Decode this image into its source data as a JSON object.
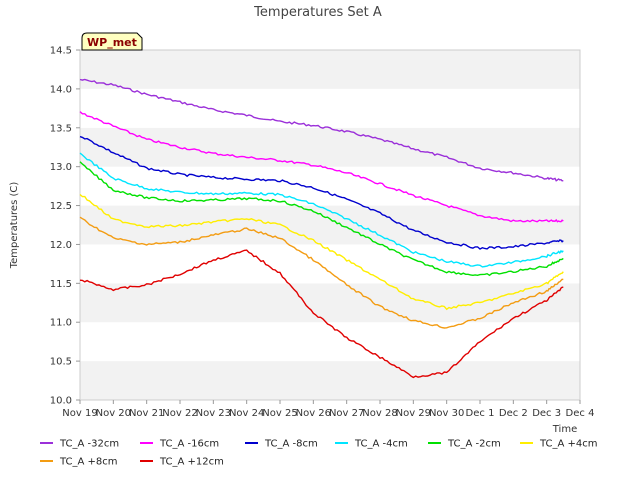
{
  "chart_data": {
    "type": "line",
    "title": "Temperatures Set A",
    "xlabel": "Time",
    "ylabel": "Temperatures (C)",
    "badge": "WP_met",
    "x_tick_labels": [
      "Nov 19",
      "Nov 20",
      "Nov 21",
      "Nov 22",
      "Nov 23",
      "Nov 24",
      "Nov 25",
      "Nov 26",
      "Nov 27",
      "Nov 28",
      "Nov 29",
      "Nov 30",
      "Dec 1",
      "Dec 2",
      "Dec 3",
      "Dec 4"
    ],
    "y_ticks": [
      10.0,
      10.5,
      11.0,
      11.5,
      12.0,
      12.5,
      13.0,
      13.5,
      14.0,
      14.5
    ],
    "y_tick_labels": [
      "10.0",
      "10.5",
      "11.0",
      "11.5",
      "12.0",
      "12.5",
      "13.0",
      "13.5",
      "14.0",
      "14.5"
    ],
    "ylim": [
      10.0,
      14.5
    ],
    "xlim": [
      "2018-11-19",
      "2018-12-04"
    ],
    "grid": "horizontal bands",
    "legend_position": "bottom",
    "x": [
      "2018-11-19",
      "2018-11-20",
      "2018-11-21",
      "2018-11-22",
      "2018-11-23",
      "2018-11-24",
      "2018-11-25",
      "2018-11-26",
      "2018-11-27",
      "2018-11-28",
      "2018-11-29",
      "2018-11-30",
      "2018-12-01",
      "2018-12-02",
      "2018-12-03",
      "2018-12-03T12:00"
    ],
    "series": [
      {
        "name": "TC_A -32cm",
        "color": "#9b30d9",
        "values": [
          14.12,
          14.05,
          13.93,
          13.83,
          13.73,
          13.66,
          13.58,
          13.53,
          13.45,
          13.35,
          13.23,
          13.12,
          12.98,
          12.92,
          12.85,
          12.82
        ]
      },
      {
        "name": "TC_A -16cm",
        "color": "#ff00ff",
        "values": [
          13.7,
          13.52,
          13.35,
          13.25,
          13.17,
          13.12,
          13.08,
          13.02,
          12.92,
          12.78,
          12.63,
          12.5,
          12.37,
          12.3,
          12.3,
          12.3
        ]
      },
      {
        "name": "TC_A -8cm",
        "color": "#0000cd",
        "values": [
          13.4,
          13.18,
          12.98,
          12.9,
          12.86,
          12.84,
          12.82,
          12.73,
          12.58,
          12.4,
          12.18,
          12.03,
          11.95,
          11.97,
          12.02,
          12.05
        ]
      },
      {
        "name": "TC_A -4cm",
        "color": "#00e5ff",
        "values": [
          13.17,
          12.85,
          12.72,
          12.67,
          12.65,
          12.66,
          12.64,
          12.52,
          12.33,
          12.12,
          11.9,
          11.78,
          11.72,
          11.77,
          11.85,
          11.92
        ]
      },
      {
        "name": "TC_A -2cm",
        "color": "#00e000",
        "values": [
          13.05,
          12.7,
          12.6,
          12.56,
          12.57,
          12.59,
          12.56,
          12.43,
          12.22,
          12.0,
          11.8,
          11.65,
          11.6,
          11.65,
          11.72,
          11.82
        ]
      },
      {
        "name": "TC_A +4cm",
        "color": "#ffee00",
        "values": [
          12.65,
          12.32,
          12.23,
          12.24,
          12.29,
          12.33,
          12.25,
          12.05,
          11.8,
          11.55,
          11.3,
          11.18,
          11.25,
          11.37,
          11.5,
          11.65
        ]
      },
      {
        "name": "TC_A +8cm",
        "color": "#f39c12",
        "values": [
          12.34,
          12.08,
          12.0,
          12.03,
          12.12,
          12.2,
          12.08,
          11.8,
          11.48,
          11.2,
          11.02,
          10.93,
          11.05,
          11.25,
          11.4,
          11.55
        ]
      },
      {
        "name": "TC_A +12cm",
        "color": "#e00000",
        "values": [
          11.55,
          11.42,
          11.48,
          11.62,
          11.8,
          11.92,
          11.63,
          11.12,
          10.8,
          10.55,
          10.3,
          10.35,
          10.75,
          11.05,
          11.28,
          11.45
        ]
      }
    ]
  }
}
